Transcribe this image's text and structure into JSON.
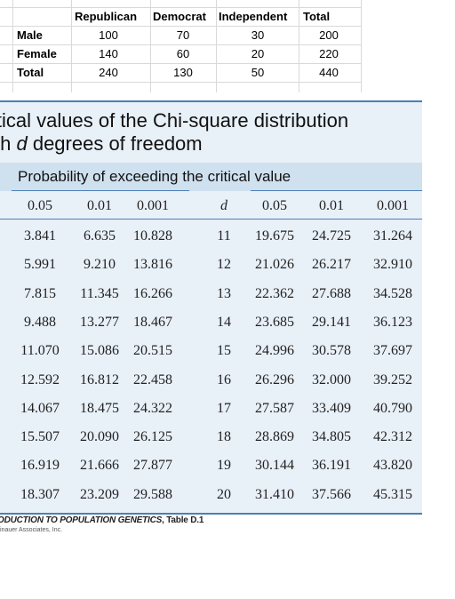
{
  "spreadsheet": {
    "headers": [
      "Republican",
      "Democrat",
      "Independent",
      "Total"
    ],
    "rows": [
      {
        "label": "Male",
        "values": [
          "100",
          "70",
          "30",
          "200"
        ]
      },
      {
        "label": "Female",
        "values": [
          "140",
          "60",
          "20",
          "220"
        ]
      },
      {
        "label": "Total",
        "values": [
          "240",
          "130",
          "50",
          "440"
        ]
      }
    ]
  },
  "chi_table": {
    "title_line1": "itical values of the Chi-square distribution",
    "title_line2_prefix": "th ",
    "title_line2_var": "d",
    "title_line2_suffix": " degrees of freedom",
    "prob_heading": "Probability of exceeding the critical value",
    "columns": [
      "0.05",
      "0.01",
      "0.001",
      "d",
      "0.05",
      "0.01",
      "0.001"
    ],
    "rows": [
      [
        "3.841",
        "6.635",
        "10.828",
        "11",
        "19.675",
        "24.725",
        "31.264"
      ],
      [
        "5.991",
        "9.210",
        "13.816",
        "12",
        "21.026",
        "26.217",
        "32.910"
      ],
      [
        "7.815",
        "11.345",
        "16.266",
        "13",
        "22.362",
        "27.688",
        "34.528"
      ],
      [
        "9.488",
        "13.277",
        "18.467",
        "14",
        "23.685",
        "29.141",
        "36.123"
      ],
      [
        "11.070",
        "15.086",
        "20.515",
        "15",
        "24.996",
        "30.578",
        "37.697"
      ],
      [
        "12.592",
        "16.812",
        "22.458",
        "16",
        "26.296",
        "32.000",
        "39.252"
      ],
      [
        "14.067",
        "18.475",
        "24.322",
        "17",
        "27.587",
        "33.409",
        "40.790"
      ],
      [
        "15.507",
        "20.090",
        "26.125",
        "18",
        "28.869",
        "34.805",
        "42.312"
      ],
      [
        "16.919",
        "21.666",
        "27.877",
        "19",
        "30.144",
        "36.191",
        "43.820"
      ],
      [
        "18.307",
        "23.209",
        "29.588",
        "20",
        "31.410",
        "37.566",
        "45.315"
      ]
    ],
    "source_title": "ODUCTION TO POPULATION GENETICS",
    "source_suffix": ", Table D.1",
    "publisher": "inauer Associates, Inc."
  }
}
